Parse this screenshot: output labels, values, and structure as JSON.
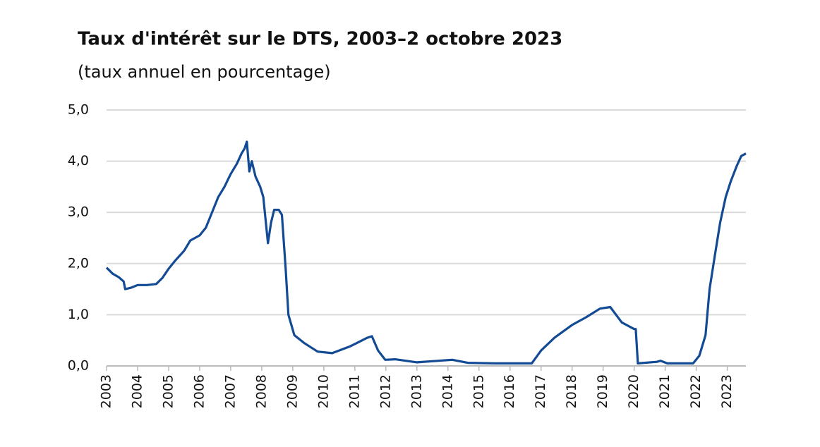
{
  "chart_data": {
    "type": "line",
    "title": "Taux d'intérêt sur le DTS, 2003–2 octobre 2023",
    "subtitle": "(taux annuel en pourcentage)",
    "color": "#134a94",
    "grid": true,
    "x": [
      2003.0,
      2003.2,
      2003.4,
      2003.55,
      2003.6,
      2003.8,
      2004.0,
      2004.3,
      2004.6,
      2004.8,
      2005.0,
      2005.2,
      2005.5,
      2005.7,
      2006.0,
      2006.2,
      2006.4,
      2006.6,
      2006.8,
      2007.0,
      2007.2,
      2007.35,
      2007.45,
      2007.52,
      2007.6,
      2007.68,
      2007.8,
      2007.95,
      2008.05,
      2008.2,
      2008.3,
      2008.4,
      2008.55,
      2008.65,
      2008.77,
      2008.86,
      2009.05,
      2009.36,
      2009.8,
      2010.27,
      2010.84,
      2011.4,
      2011.55,
      2011.75,
      2011.98,
      2012.3,
      2013.0,
      2013.7,
      2014.14,
      2014.64,
      2015.5,
      2016.7,
      2017.0,
      2017.43,
      2018.0,
      2018.45,
      2018.9,
      2019.23,
      2019.6,
      2020.0,
      2020.05,
      2020.12,
      2020.73,
      2020.85,
      2021.07,
      2021.9,
      2022.1,
      2022.3,
      2022.43,
      2022.61,
      2022.77,
      2022.95,
      2023.11,
      2023.3,
      2023.45,
      2023.6
    ],
    "values": [
      1.92,
      1.8,
      1.73,
      1.65,
      1.5,
      1.53,
      1.58,
      1.58,
      1.6,
      1.72,
      1.9,
      2.05,
      2.25,
      2.45,
      2.55,
      2.7,
      3.0,
      3.3,
      3.5,
      3.75,
      3.95,
      4.15,
      4.25,
      4.38,
      3.8,
      4.0,
      3.7,
      3.5,
      3.3,
      2.4,
      2.8,
      3.05,
      3.05,
      2.95,
      1.9,
      1.0,
      0.6,
      0.45,
      0.28,
      0.25,
      0.38,
      0.55,
      0.58,
      0.3,
      0.12,
      0.13,
      0.07,
      0.1,
      0.12,
      0.06,
      0.05,
      0.05,
      0.3,
      0.55,
      0.8,
      0.95,
      1.12,
      1.15,
      0.85,
      0.72,
      0.72,
      0.05,
      0.08,
      0.1,
      0.05,
      0.05,
      0.2,
      0.6,
      1.5,
      2.2,
      2.8,
      3.3,
      3.6,
      3.9,
      4.1,
      4.15
    ],
    "xlim": [
      2003,
      2023.6
    ],
    "xticks": [
      2003,
      2004,
      2005,
      2006,
      2007,
      2008,
      2009,
      2010,
      2011,
      2012,
      2013,
      2014,
      2015,
      2016,
      2017,
      2018,
      2019,
      2020,
      2021,
      2022,
      2023
    ],
    "ylim": [
      0,
      5
    ],
    "yticks": [
      {
        "value": 0,
        "label": "0,0"
      },
      {
        "value": 1,
        "label": "1,0"
      },
      {
        "value": 2,
        "label": "2,0"
      },
      {
        "value": 3,
        "label": "3,0"
      },
      {
        "value": 4,
        "label": "4,0"
      },
      {
        "value": 5,
        "label": "5,0"
      }
    ]
  }
}
